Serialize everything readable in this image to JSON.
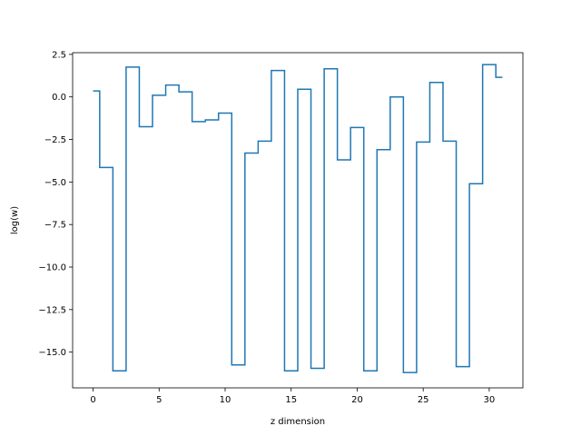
{
  "chart_data": {
    "type": "line",
    "style": "step-mid",
    "xlabel": "z dimension",
    "ylabel": "log(w)",
    "xlim": [
      -1.55,
      32.55
    ],
    "ylim": [
      -17.1,
      2.6
    ],
    "x": [
      0,
      1,
      2,
      3,
      4,
      5,
      6,
      7,
      8,
      9,
      10,
      11,
      12,
      13,
      14,
      15,
      16,
      17,
      18,
      19,
      20,
      21,
      22,
      23,
      24,
      25,
      26,
      27,
      28,
      29,
      30,
      31
    ],
    "series": [
      {
        "values": [
          0.35,
          -4.15,
          -16.1,
          1.75,
          -1.75,
          0.1,
          0.7,
          0.3,
          -1.45,
          -1.35,
          -0.95,
          -15.75,
          -3.3,
          -2.6,
          1.55,
          -16.1,
          0.45,
          -15.95,
          1.65,
          -3.7,
          -1.8,
          -16.1,
          -3.1,
          0.0,
          -16.2,
          -2.65,
          0.85,
          -2.6,
          -15.85,
          -5.1,
          1.9,
          1.15
        ],
        "color": "#1f77b4"
      }
    ],
    "xticks": [
      0,
      5,
      10,
      15,
      20,
      25,
      30
    ],
    "xtick_labels": [
      "0",
      "5",
      "10",
      "15",
      "20",
      "25",
      "30"
    ],
    "yticks": [
      2.5,
      0,
      -2.5,
      -5,
      -7.5,
      -10,
      -12.5,
      -15
    ],
    "ytick_labels": [
      "2.5",
      "0.0",
      "−2.5",
      "−5.0",
      "−7.5",
      "−10.0",
      "−12.5",
      "−15.0"
    ],
    "grid": false,
    "legend": false
  }
}
